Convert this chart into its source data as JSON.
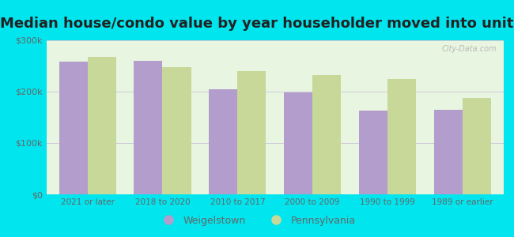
{
  "title": "Median house/condo value by year householder moved into unit",
  "categories": [
    "2021 or later",
    "2018 to 2020",
    "2010 to 2017",
    "2000 to 2009",
    "1990 to 1999",
    "1989 or earlier"
  ],
  "weigelstown": [
    258000,
    260000,
    205000,
    198000,
    163000,
    165000
  ],
  "pennsylvania": [
    268000,
    248000,
    240000,
    232000,
    225000,
    188000
  ],
  "weigelstown_color": "#b39dcc",
  "pennsylvania_color": "#c8d898",
  "background_outer": "#00e5ee",
  "background_plot_top": "#e8f5e0",
  "background_plot_bottom": "#f0faf0",
  "ylim": [
    0,
    300000
  ],
  "yticks": [
    0,
    100000,
    200000,
    300000
  ],
  "ytick_labels": [
    "$0",
    "$100k",
    "$200k",
    "$300k"
  ],
  "title_fontsize": 13,
  "legend_labels": [
    "Weigelstown",
    "Pennsylvania"
  ],
  "watermark": "City-Data.com",
  "bar_width": 0.38,
  "grid_color": "#d0c8d8",
  "tick_color": "#666666",
  "title_color": "#222222"
}
